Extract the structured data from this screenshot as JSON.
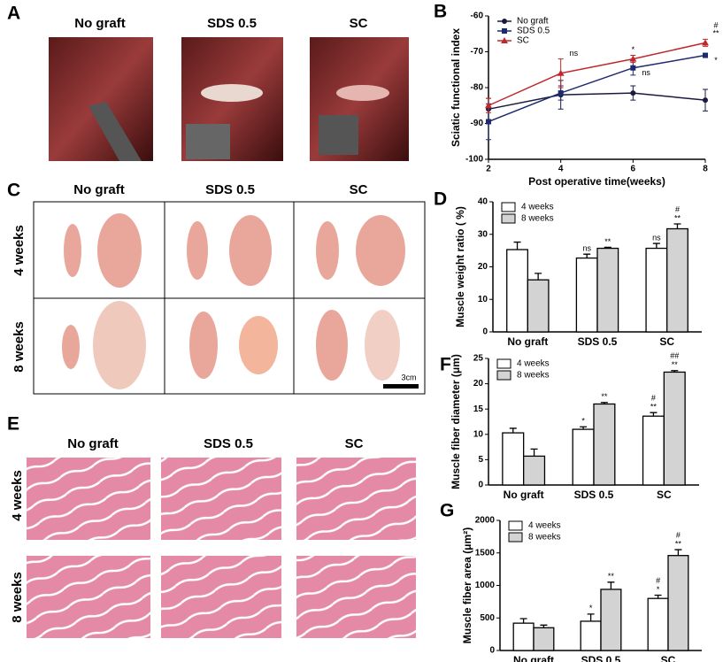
{
  "panels": {
    "A": {
      "label": "A",
      "columns": [
        "No graft",
        "SDS 0.5",
        "SC"
      ]
    },
    "C": {
      "label": "C",
      "columns": [
        "No graft",
        "SDS 0.5",
        "SC"
      ],
      "rows": [
        "4 weeks",
        "8 weeks"
      ],
      "scale_bar": "3cm"
    },
    "E": {
      "label": "E",
      "columns": [
        "No graft",
        "SDS 0.5",
        "SC"
      ],
      "rows": [
        "4 weeks",
        "8 weeks"
      ]
    }
  },
  "chart_data": [
    {
      "type": "line",
      "panel": "B",
      "ylabel": "Sciatic functional index",
      "xlabel": "Post operative time(weeks)",
      "x": [
        2,
        4,
        6,
        8
      ],
      "xlim": [
        2,
        8
      ],
      "xticks": [
        2,
        4,
        6,
        8
      ],
      "ylim": [
        -100,
        -60
      ],
      "yticks": [
        -100,
        -90,
        -80,
        -70,
        -60
      ],
      "legend": "top-left",
      "series": [
        {
          "name": "No graft",
          "color": "#1a1a40",
          "marker": "circle",
          "values": [
            -86,
            -82,
            -81.5,
            -83.5
          ],
          "errors": [
            3,
            4,
            2,
            3
          ],
          "annotations": [
            [],
            [],
            [],
            []
          ]
        },
        {
          "name": "SDS 0.5",
          "color": "#1f2a6e",
          "marker": "square",
          "values": [
            -89.5,
            -81.5,
            -74.5,
            -71
          ],
          "errors": [
            5,
            2,
            2,
            0.5
          ],
          "annotations": [
            [],
            [],
            [
              "ns"
            ],
            [
              "*"
            ]
          ]
        },
        {
          "name": "SC",
          "color": "#c0272d",
          "marker": "triangle",
          "values": [
            -85,
            -76,
            -72,
            -67.5
          ],
          "errors": [
            2,
            4,
            1,
            1
          ],
          "annotations": [
            [],
            [
              "ns"
            ],
            [
              "*"
            ],
            [
              "**",
              "#"
            ]
          ]
        }
      ]
    },
    {
      "type": "bar",
      "panel": "D",
      "ylabel": "Muscle weight ratio ( %)",
      "categories": [
        "No graft",
        "SDS 0.5",
        "SC"
      ],
      "ylim": [
        0,
        40
      ],
      "yticks": [
        0,
        10,
        20,
        30,
        40
      ],
      "legend": "top-left",
      "series": [
        {
          "name": "4 weeks",
          "color": "#ffffff",
          "values": [
            25.3,
            22.7,
            25.7
          ],
          "errors": [
            2.3,
            1.2,
            1.5
          ],
          "annotations": [
            [],
            [
              "ns"
            ],
            [
              "ns"
            ]
          ]
        },
        {
          "name": "8 weeks",
          "color": "#d3d3d3",
          "values": [
            16,
            25.7,
            31.7
          ],
          "errors": [
            2,
            0.3,
            1.5
          ],
          "annotations": [
            [],
            [
              "**"
            ],
            [
              "**",
              "#"
            ]
          ]
        }
      ]
    },
    {
      "type": "bar",
      "panel": "F",
      "ylabel": "Muscle fiber diameter (μm)",
      "categories": [
        "No graft",
        "SDS 0.5",
        "SC"
      ],
      "ylim": [
        0,
        25
      ],
      "yticks": [
        0,
        5,
        10,
        15,
        20,
        25
      ],
      "legend": "top-left",
      "series": [
        {
          "name": "4 weeks",
          "color": "#ffffff",
          "values": [
            10.3,
            11,
            13.6
          ],
          "errors": [
            0.9,
            0.5,
            0.7
          ],
          "annotations": [
            [],
            [
              "*"
            ],
            [
              "**",
              "#"
            ]
          ]
        },
        {
          "name": "8 weeks",
          "color": "#d3d3d3",
          "values": [
            5.7,
            16,
            22.3
          ],
          "errors": [
            1.4,
            0.3,
            0.3
          ],
          "annotations": [
            [],
            [
              "**"
            ],
            [
              "**",
              "##"
            ]
          ]
        }
      ]
    },
    {
      "type": "bar",
      "panel": "G",
      "ylabel": "Muscle fiber area (μm²)",
      "categories": [
        "No graft",
        "SDS 0.5",
        "SC"
      ],
      "ylim": [
        0,
        2000
      ],
      "yticks": [
        0,
        500,
        1000,
        1500,
        2000
      ],
      "legend": "top-left",
      "series": [
        {
          "name": "4 weeks",
          "color": "#ffffff",
          "values": [
            420,
            450,
            800
          ],
          "errors": [
            70,
            110,
            50
          ],
          "annotations": [
            [],
            [
              "*"
            ],
            [
              "*",
              "#"
            ]
          ]
        },
        {
          "name": "8 weeks",
          "color": "#d3d3d3",
          "values": [
            350,
            940,
            1460
          ],
          "errors": [
            40,
            110,
            90
          ],
          "annotations": [
            [],
            [
              "**"
            ],
            [
              "**",
              "#"
            ]
          ]
        }
      ]
    }
  ]
}
